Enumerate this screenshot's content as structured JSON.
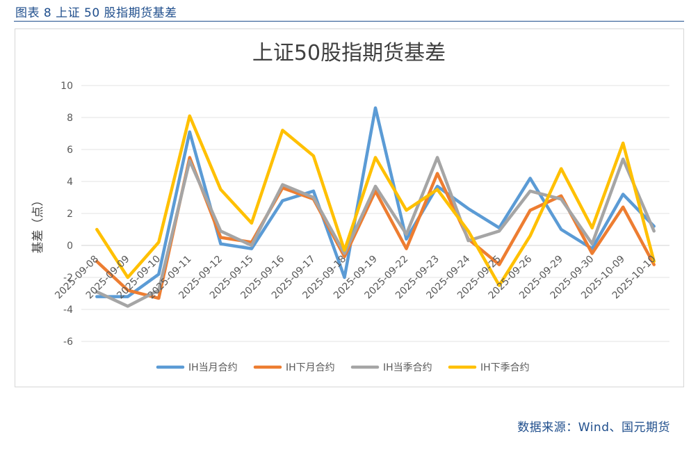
{
  "figure": {
    "caption": "图表 8  上证 50 股指期货基差",
    "source": "数据来源：Wind、国元期货"
  },
  "chart_data": {
    "type": "line",
    "title": "上证50股指期货基差",
    "xlabel": "",
    "ylabel": "基差（点）",
    "ylim": [
      -6,
      10
    ],
    "yticks": [
      -6,
      -4,
      -2,
      0,
      2,
      4,
      6,
      8,
      10
    ],
    "grid": true,
    "legend_position": "bottom",
    "categories": [
      "2025-09-08",
      "2025-09-09",
      "2025-09-10",
      "2025-09-11",
      "2025-09-12",
      "2025-09-15",
      "2025-09-16",
      "2025-09-17",
      "2025-09-18",
      "2025-09-19",
      "2025-09-22",
      "2025-09-23",
      "2025-09-24",
      "2025-09-25",
      "2025-09-26",
      "2025-09-29",
      "2025-09-30",
      "2025-10-09",
      "2025-10-10"
    ],
    "series": [
      {
        "name": "IH当月合约",
        "color": "#5b9bd5",
        "values": [
          -3.2,
          -3.2,
          -1.8,
          7.1,
          0.1,
          -0.2,
          2.8,
          3.4,
          -2.0,
          8.6,
          0.4,
          3.7,
          2.3,
          1.1,
          4.2,
          1.0,
          -0.2,
          3.2,
          1.2
        ]
      },
      {
        "name": "IH下月合约",
        "color": "#ed7d31",
        "values": [
          -1.0,
          -2.8,
          -3.3,
          5.5,
          0.5,
          0.2,
          3.6,
          2.9,
          -0.7,
          3.4,
          -0.2,
          4.5,
          0.4,
          -1.2,
          2.2,
          3.1,
          -0.5,
          2.4,
          -1.2
        ]
      },
      {
        "name": "IH当季合约",
        "color": "#a5a5a5",
        "values": [
          -2.9,
          -3.8,
          -2.8,
          5.3,
          0.9,
          0.0,
          3.8,
          3.0,
          -0.5,
          3.7,
          0.7,
          5.5,
          0.3,
          0.9,
          3.4,
          2.9,
          0.1,
          5.4,
          0.9
        ]
      },
      {
        "name": "IH下季合约",
        "color": "#ffc000",
        "values": [
          1.0,
          -2.0,
          0.2,
          8.1,
          3.5,
          1.4,
          7.2,
          5.6,
          -0.3,
          5.5,
          2.2,
          3.5,
          0.9,
          -2.5,
          0.6,
          4.8,
          1.1,
          6.4,
          -1.0
        ]
      }
    ]
  }
}
